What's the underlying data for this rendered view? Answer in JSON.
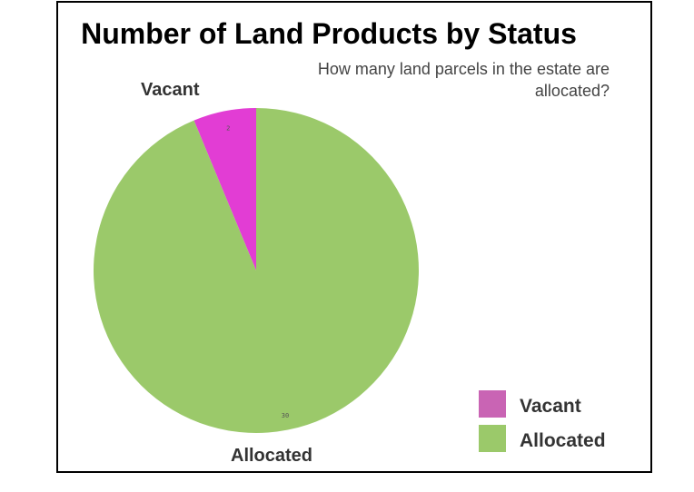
{
  "chart_data": {
    "type": "pie",
    "title": "Number of Land Products by Status",
    "subtitle": "How many land parcels in the estate are allocated?",
    "categories": [
      "Vacant",
      "Allocated"
    ],
    "values": [
      2,
      30
    ],
    "colors": [
      "#e23dd4",
      "#9bc96a"
    ],
    "legend_colors": [
      "#c964b4",
      "#9bc96a"
    ],
    "legend_position": "bottom-right",
    "legend_labels": [
      "Vacant",
      "Allocated"
    ]
  }
}
